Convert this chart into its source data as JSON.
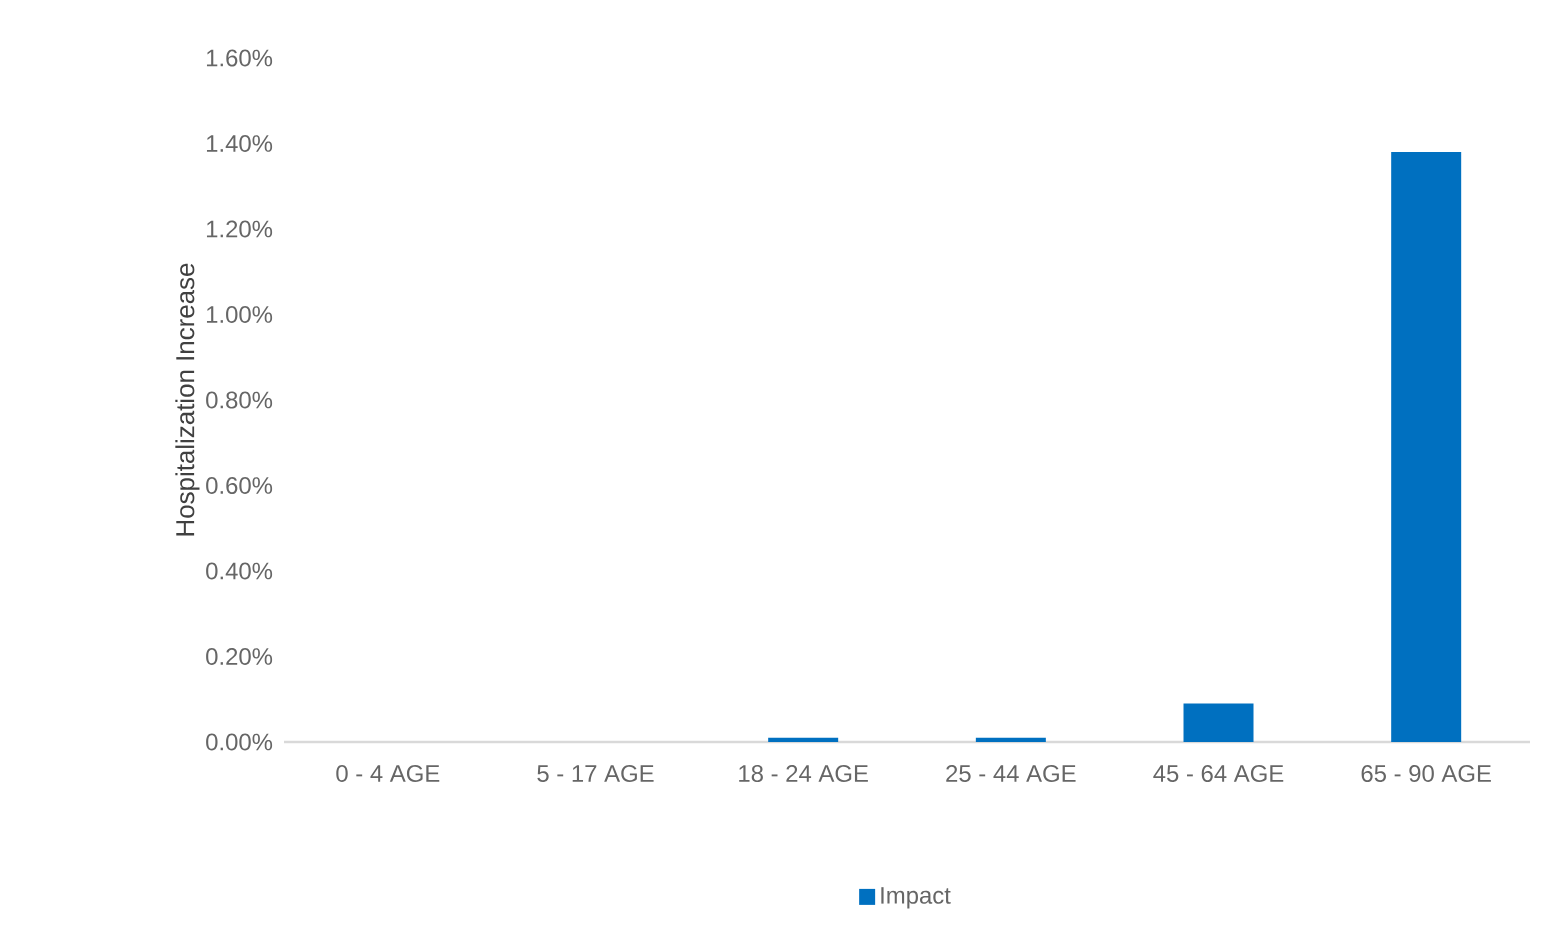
{
  "chart_data": {
    "type": "bar",
    "ylabel": "Hospitalization Increase",
    "categories": [
      "0 - 4 AGE",
      "5 - 17 AGE",
      "18 - 24 AGE",
      "25 - 44 AGE",
      "45 - 64 AGE",
      "65 - 90 AGE"
    ],
    "series": [
      {
        "name": "Impact",
        "color": "#0070c0",
        "values": [
          0,
          0,
          0.01,
          0.01,
          0.09,
          1.38
        ]
      }
    ],
    "ylim": [
      0,
      1.6
    ],
    "yticks": [
      {
        "value": 0,
        "label": "0.00%"
      },
      {
        "value": 0.2,
        "label": "0.20%"
      },
      {
        "value": 0.4,
        "label": "0.40%"
      },
      {
        "value": 0.6,
        "label": "0.60%"
      },
      {
        "value": 0.8,
        "label": "0.80%"
      },
      {
        "value": 1.0,
        "label": "1.00%"
      },
      {
        "value": 1.2,
        "label": "1.20%"
      },
      {
        "value": 1.4,
        "label": "1.40%"
      },
      {
        "value": 1.6,
        "label": "1.60%"
      }
    ],
    "grid": false,
    "legend": "bottom"
  }
}
